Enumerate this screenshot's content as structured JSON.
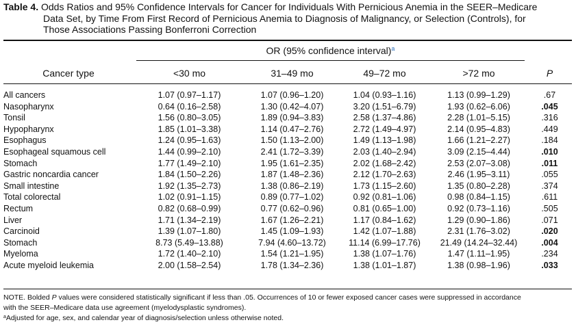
{
  "caption": {
    "label": "Table 4.",
    "line1": "Odds Ratios and 95% Confidence Intervals for Cancer for Individuals With Pernicious Anemia in the SEER–Medicare",
    "line2": "Data Set, by Time From First Record of Pernicious Anemia to Diagnosis of Malignancy, or Selection (Controls), for",
    "line3": "Those Associations Passing Bonferroni Correction"
  },
  "header": {
    "group": "OR (95% confidence interval)",
    "group_footnote": "a",
    "cancer_type": "Cancer type",
    "col1": "<30 mo",
    "col2": "31–49 mo",
    "col3": "49–72 mo",
    "col4": ">72 mo",
    "p": "P"
  },
  "rows": [
    {
      "name": "All cancers",
      "c1": "1.07 (0.97–1.17)",
      "c2": "1.07 (0.96–1.20)",
      "c3": "1.04 (0.93–1.16)",
      "c4": "1.13 (0.99–1.29)",
      "p": ".67",
      "sig": false
    },
    {
      "name": "Nasopharynx",
      "c1": "0.64 (0.16–2.58)",
      "c2": "1.30 (0.42–4.07)",
      "c3": "3.20 (1.51–6.79)",
      "c4": "1.93 (0.62–6.06)",
      "p": ".045",
      "sig": true
    },
    {
      "name": "Tonsil",
      "c1": "1.56 (0.80–3.05)",
      "c2": "1.89 (0.94–3.83)",
      "c3": "2.58 (1.37–4.86)",
      "c4": "2.28 (1.01–5.15)",
      "p": ".316",
      "sig": false
    },
    {
      "name": "Hypopharynx",
      "c1": "1.85 (1.01–3.38)",
      "c2": "1.14 (0.47–2.76)",
      "c3": "2.72 (1.49–4.97)",
      "c4": "2.14 (0.95–4.83)",
      "p": ".449",
      "sig": false
    },
    {
      "name": "Esophagus",
      "c1": "1.24 (0.95–1.63)",
      "c2": "1.50 (1.13–2.00)",
      "c3": "1.49 (1.13–1.98)",
      "c4": "1.66 (1.21–2.27)",
      "p": ".184",
      "sig": false
    },
    {
      "name": "Esophageal squamous cell",
      "c1": "1.44 (0.99–2.10)",
      "c2": "2.41 (1.72–3.39)",
      "c3": "2.03 (1.40–2.94)",
      "c4": "3.09 (2.15–4.44)",
      "p": ".010",
      "sig": true
    },
    {
      "name": "Stomach",
      "c1": "1.77 (1.49–2.10)",
      "c2": "1.95 (1.61–2.35)",
      "c3": "2.02 (1.68–2.42)",
      "c4": "2.53 (2.07–3.08)",
      "p": ".011",
      "sig": true
    },
    {
      "name": "Gastric noncardia cancer",
      "c1": "1.84 (1.50–2.26)",
      "c2": "1.87 (1.48–2.36)",
      "c3": "2.12 (1.70–2.63)",
      "c4": "2.46 (1.95–3.11)",
      "p": ".055",
      "sig": false
    },
    {
      "name": "Small intestine",
      "c1": "1.92 (1.35–2.73)",
      "c2": "1.38 (0.86–2.19)",
      "c3": "1.73 (1.15–2.60)",
      "c4": "1.35 (0.80–2.28)",
      "p": ".374",
      "sig": false
    },
    {
      "name": "Total colorectal",
      "c1": "1.02 (0.91–1.15)",
      "c2": "0.89 (0.77–1.02)",
      "c3": "0.92 (0.81–1.06)",
      "c4": "0.98 (0.84–1.15)",
      "p": ".611",
      "sig": false
    },
    {
      "name": "Rectum",
      "c1": "0.82 (0.68–0.99)",
      "c2": "0.77 (0.62–0.96)",
      "c3": "0.81 (0.65–1.00)",
      "c4": "0.92 (0.73–1.16)",
      "p": ".505",
      "sig": false
    },
    {
      "name": "Liver",
      "c1": "1.71 (1.34–2.19)",
      "c2": "1.67 (1.26–2.21)",
      "c3": "1.17 (0.84–1.62)",
      "c4": "1.29 (0.90–1.86)",
      "p": ".071",
      "sig": false
    },
    {
      "name": "Carcinoid",
      "c1": "1.39 (1.07–1.80)",
      "c2": "1.45 (1.09–1.93)",
      "c3": "1.42 (1.07–1.88)",
      "c4": "2.31 (1.76–3.02)",
      "p": ".020",
      "sig": true
    },
    {
      "name": "Stomach",
      "c1": "8.73 (5.49–13.88)",
      "c2": "7.94 (4.60–13.72)",
      "c3": "11.14 (6.99–17.76)",
      "c4": "21.49 (14.24–32.44)",
      "p": ".004",
      "sig": true
    },
    {
      "name": "Myeloma",
      "c1": "1.72 (1.40–2.10)",
      "c2": "1.54 (1.21–1.95)",
      "c3": "1.38 (1.07–1.76)",
      "c4": "1.47 (1.11–1.95)",
      "p": ".234",
      "sig": false
    },
    {
      "name": "Acute myeloid leukemia",
      "c1": "2.00 (1.58–2.54)",
      "c2": "1.78 (1.34–2.36)",
      "c3": "1.38 (1.01–1.87)",
      "c4": "1.38 (0.98–1.96)",
      "p": ".033",
      "sig": true
    }
  ],
  "notes": {
    "note_line1": "NOTE. Bolded P values were considered statistically significant if less than .05. Occurrences of 10 or fewer exposed cancer cases were suppressed in accordance",
    "note_line2": "with the SEER–Medicare data use agreement (myelodysplastic syndromes).",
    "footnote_mark": "a",
    "footnote_a": "Adjusted for age, sex, and calendar year of diagnosis/selection unless otherwise noted."
  }
}
